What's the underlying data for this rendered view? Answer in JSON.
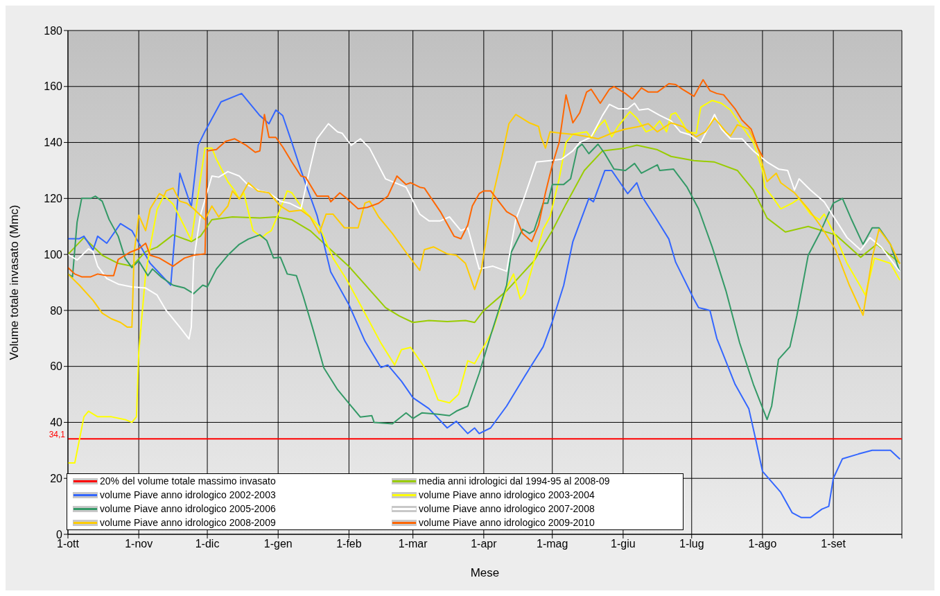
{
  "chart_data": {
    "type": "line",
    "xlabel": "Mese",
    "ylabel": "Volume totale invasato (Mmc)",
    "xlim": [
      "2009-10-01",
      "2010-10-01"
    ],
    "ylim": [
      0,
      180
    ],
    "xticks": [
      {
        "value": "2009-10-01",
        "label": "1-ott"
      },
      {
        "value": "2009-11-01",
        "label": "1-nov"
      },
      {
        "value": "2009-12-01",
        "label": "1-dic"
      },
      {
        "value": "2010-01-01",
        "label": "1-gen"
      },
      {
        "value": "2010-02-01",
        "label": "1-feb"
      },
      {
        "value": "2010-03-01",
        "label": "1-mar"
      },
      {
        "value": "2010-04-01",
        "label": "1-apr"
      },
      {
        "value": "2010-05-01",
        "label": "1-mag"
      },
      {
        "value": "2010-06-01",
        "label": "1-giu"
      },
      {
        "value": "2010-07-01",
        "label": "1-lug"
      },
      {
        "value": "2010-08-01",
        "label": "1-ago"
      },
      {
        "value": "2010-09-01",
        "label": "1-set"
      },
      {
        "value": "2010-10-01",
        "label": null
      }
    ],
    "yticks": [
      0,
      20,
      40,
      60,
      80,
      100,
      120,
      140,
      160,
      180
    ],
    "grid": true,
    "legend": "bottom left",
    "marker": "none",
    "line_style": "solid",
    "annotations": [
      {
        "text": "34,1",
        "x": "2009-10-01",
        "y": 34.1
      }
    ],
    "series": [
      {
        "name": "20% del volume totale massimo invasato",
        "color": "#ff0000",
        "x": [
          "2009-10-01",
          "2010-10-01"
        ],
        "values": [
          34.1,
          34.1
        ]
      },
      {
        "name": "media anni idrologici dal 1994-95 al 2008-09",
        "color": "#99cc00",
        "x": [
          "2009-10-01",
          "2009-10-08",
          "2009-10-16",
          "2009-10-23",
          "2009-10-29",
          "2009-11-04",
          "2009-11-09",
          "2009-11-16",
          "2009-11-24",
          "2009-11-28",
          "2009-12-03",
          "2009-12-12",
          "2009-12-24",
          "2009-12-31",
          "2010-01-07",
          "2010-01-15",
          "2010-01-24",
          "2010-02-01",
          "2010-02-11",
          "2010-02-17",
          "2010-02-23",
          "2010-03-01",
          "2010-03-08",
          "2010-03-16",
          "2010-03-24",
          "2010-03-28",
          "2010-04-01",
          "2010-04-11",
          "2010-04-23",
          "2010-05-01",
          "2010-05-07",
          "2010-05-15",
          "2010-05-23",
          "2010-06-02",
          "2010-06-07",
          "2010-06-16",
          "2010-06-22",
          "2010-07-02",
          "2010-07-11",
          "2010-07-21",
          "2010-07-28",
          "2010-08-03",
          "2010-08-11",
          "2010-08-21",
          "2010-09-02",
          "2010-09-13",
          "2010-09-20",
          "2010-09-30"
        ],
        "values": [
          100,
          106,
          99.7,
          96.8,
          95.8,
          101,
          102.6,
          107,
          104.6,
          106.5,
          112.4,
          113.4,
          113,
          113.4,
          112.4,
          108.5,
          101.7,
          95.7,
          86.5,
          81,
          78,
          75.7,
          76.4,
          76,
          76.4,
          75.7,
          80,
          87,
          97.7,
          108.5,
          118,
          130,
          137,
          138,
          139,
          137.4,
          135,
          133.5,
          133,
          130,
          123,
          113,
          108,
          110,
          107,
          99,
          103.6,
          97
        ]
      },
      {
        "name": "volume Piave anno idrologico 2002-2003",
        "color": "#3366ff",
        "x": [
          "2009-10-01",
          "2009-10-06",
          "2009-10-08",
          "2009-10-12",
          "2009-10-14",
          "2009-10-18",
          "2009-10-24",
          "2009-10-29",
          "2009-10-31",
          "2009-11-06",
          "2009-11-15",
          "2009-11-19",
          "2009-11-24",
          "2009-11-27",
          "2009-11-30",
          "2009-12-07",
          "2009-12-16",
          "2009-12-24",
          "2009-12-28",
          "2009-12-31",
          "2010-01-03",
          "2010-01-07",
          "2010-01-11",
          "2010-01-18",
          "2010-01-24",
          "2010-02-01",
          "2010-02-08",
          "2010-02-15",
          "2010-02-18",
          "2010-02-24",
          "2010-03-01",
          "2010-03-08",
          "2010-03-16",
          "2010-03-20",
          "2010-03-25",
          "2010-03-28",
          "2010-03-30",
          "2010-04-04",
          "2010-04-11",
          "2010-04-19",
          "2010-04-27",
          "2010-05-01",
          "2010-05-06",
          "2010-05-10",
          "2010-05-17",
          "2010-05-19",
          "2010-05-24",
          "2010-05-27",
          "2010-06-03",
          "2010-06-07",
          "2010-06-09",
          "2010-06-15",
          "2010-06-21",
          "2010-06-24",
          "2010-07-02",
          "2010-07-04",
          "2010-07-09",
          "2010-07-12",
          "2010-07-20",
          "2010-07-26",
          "2010-07-29",
          "2010-08-01",
          "2010-08-09",
          "2010-08-14",
          "2010-08-18",
          "2010-08-22",
          "2010-08-27",
          "2010-08-30",
          "2010-09-01",
          "2010-09-05",
          "2010-09-12",
          "2010-09-18",
          "2010-09-26",
          "2010-09-30"
        ],
        "values": [
          105.6,
          105.6,
          106.5,
          101.6,
          106.5,
          104,
          111,
          108.5,
          105.6,
          96.8,
          89,
          129,
          117,
          139,
          144,
          154.5,
          157.5,
          149.6,
          146.7,
          151.6,
          149.6,
          140,
          130,
          114,
          93.8,
          82,
          69,
          59.6,
          60.5,
          54.7,
          48.8,
          44.9,
          38,
          40.4,
          36,
          38,
          36,
          38,
          45.8,
          56.6,
          67,
          76,
          89,
          104.6,
          120,
          118.8,
          130,
          130,
          121.7,
          125.6,
          121,
          113.4,
          105.5,
          97.2,
          84,
          81,
          80,
          70,
          53.6,
          44.9,
          34,
          22.5,
          15,
          7.7,
          6,
          6,
          9,
          10,
          20,
          27,
          28.7,
          30,
          30,
          27
        ]
      },
      {
        "name": "volume Piave anno idrologico 2003-2004",
        "color": "#ffff00",
        "x": [
          "2009-10-01",
          "2009-10-04",
          "2009-10-08",
          "2009-10-10",
          "2009-10-14",
          "2009-10-20",
          "2009-10-26",
          "2009-10-29",
          "2009-10-31",
          "2009-11-01",
          "2009-11-04",
          "2009-11-06",
          "2009-11-09",
          "2009-11-12",
          "2009-11-16",
          "2009-11-21",
          "2009-11-24",
          "2009-11-30",
          "2009-12-03",
          "2009-12-05",
          "2009-12-10",
          "2009-12-13",
          "2009-12-15",
          "2009-12-17",
          "2009-12-21",
          "2009-12-25",
          "2009-12-27",
          "2009-12-29",
          "2010-01-02",
          "2010-01-05",
          "2010-01-07",
          "2010-01-12",
          "2010-01-19",
          "2010-01-25",
          "2010-01-31",
          "2010-02-08",
          "2010-02-15",
          "2010-02-21",
          "2010-02-24",
          "2010-02-28",
          "2010-03-07",
          "2010-03-12",
          "2010-03-17",
          "2010-03-21",
          "2010-03-25",
          "2010-03-28",
          "2010-04-01",
          "2010-04-05",
          "2010-04-11",
          "2010-04-14",
          "2010-04-17",
          "2010-04-19",
          "2010-04-23",
          "2010-04-27",
          "2010-04-30",
          "2010-05-04",
          "2010-05-07",
          "2010-05-10",
          "2010-05-16",
          "2010-05-18",
          "2010-05-21",
          "2010-05-24",
          "2010-05-27",
          "2010-05-30",
          "2010-06-04",
          "2010-06-07",
          "2010-06-11",
          "2010-06-14",
          "2010-06-17",
          "2010-06-20",
          "2010-06-22",
          "2010-06-24",
          "2010-06-27",
          "2010-06-29",
          "2010-07-03",
          "2010-07-05",
          "2010-07-10",
          "2010-07-14",
          "2010-07-18",
          "2010-07-23",
          "2010-07-28",
          "2010-08-01",
          "2010-08-02",
          "2010-08-06",
          "2010-08-09",
          "2010-08-14",
          "2010-08-17",
          "2010-08-22",
          "2010-08-26",
          "2010-08-28",
          "2010-09-02",
          "2010-09-07",
          "2010-09-13",
          "2010-09-15",
          "2010-09-19",
          "2010-09-26",
          "2010-09-30"
        ],
        "values": [
          25.5,
          25.5,
          42,
          44,
          42,
          42,
          41,
          40,
          42,
          65,
          93,
          102.7,
          116,
          121,
          118,
          110,
          105,
          138,
          138,
          134,
          126,
          122.7,
          119.8,
          122,
          108.5,
          106,
          107.5,
          108.5,
          116.3,
          122.7,
          122,
          116,
          110,
          98.7,
          91,
          79,
          68.3,
          60.5,
          66,
          66.8,
          58.6,
          48,
          47,
          50,
          62,
          61,
          67,
          73,
          88,
          93,
          84,
          86,
          97.7,
          109,
          113.4,
          127,
          140,
          143,
          143.8,
          141.6,
          145.6,
          148,
          142,
          146,
          151,
          148.7,
          143.8,
          144.8,
          147.7,
          143.8,
          150,
          150.6,
          147,
          143.8,
          143.3,
          152.6,
          155,
          154,
          151.6,
          145.7,
          140,
          130,
          124,
          119.8,
          116.3,
          118.3,
          120,
          114.4,
          112.4,
          114.4,
          106.5,
          96.8,
          88.4,
          85.5,
          98.7,
          96.8,
          91
        ]
      },
      {
        "name": "volume Piave anno idrologico 2005-2006",
        "color": "#339966",
        "x": [
          "2009-10-01",
          "2009-10-03",
          "2009-10-05",
          "2009-10-07",
          "2009-10-11",
          "2009-10-13",
          "2009-10-16",
          "2009-10-19",
          "2009-10-23",
          "2009-10-26",
          "2009-10-29",
          "2009-11-01",
          "2009-11-05",
          "2009-11-07",
          "2009-11-11",
          "2009-11-16",
          "2009-11-21",
          "2009-11-25",
          "2009-11-29",
          "2009-12-01",
          "2009-12-05",
          "2009-12-10",
          "2009-12-15",
          "2009-12-19",
          "2009-12-24",
          "2009-12-27",
          "2009-12-30",
          "2010-01-02",
          "2010-01-05",
          "2010-01-09",
          "2010-01-12",
          "2010-01-16",
          "2010-01-21",
          "2010-01-27",
          "2010-02-02",
          "2010-02-06",
          "2010-02-11",
          "2010-02-12",
          "2010-02-20",
          "2010-02-26",
          "2010-03-01",
          "2010-03-05",
          "2010-03-12",
          "2010-03-17",
          "2010-03-20",
          "2010-03-25",
          "2010-03-30",
          "2010-04-04",
          "2010-04-11",
          "2010-04-13",
          "2010-04-18",
          "2010-04-21",
          "2010-04-23",
          "2010-04-27",
          "2010-04-29",
          "2010-05-01",
          "2010-05-06",
          "2010-05-09",
          "2010-05-12",
          "2010-05-14",
          "2010-05-17",
          "2010-05-21",
          "2010-05-24",
          "2010-05-28",
          "2010-06-02",
          "2010-06-06",
          "2010-06-09",
          "2010-06-16",
          "2010-06-17",
          "2010-06-23",
          "2010-06-29",
          "2010-07-04",
          "2010-07-10",
          "2010-07-16",
          "2010-07-22",
          "2010-07-28",
          "2010-08-03",
          "2010-08-05",
          "2010-08-08",
          "2010-08-13",
          "2010-08-16",
          "2010-08-21",
          "2010-08-26",
          "2010-09-01",
          "2010-09-05",
          "2010-09-09",
          "2010-09-14",
          "2010-09-18",
          "2010-09-21",
          "2010-09-26",
          "2010-09-30"
        ],
        "values": [
          93,
          92,
          111.5,
          120,
          120,
          120.8,
          119,
          112.5,
          106.5,
          98.7,
          95.3,
          97.7,
          92.4,
          94.8,
          91.8,
          89,
          88,
          86,
          89,
          88.4,
          94.8,
          99.7,
          103.6,
          105.5,
          107,
          105,
          98.7,
          99,
          93,
          92.4,
          85,
          74,
          59.5,
          51.7,
          45.8,
          41.9,
          42.4,
          40,
          39.5,
          43.4,
          41.4,
          43.4,
          42.9,
          42.4,
          44,
          45.8,
          57.5,
          71,
          89,
          100.7,
          109,
          107.5,
          108.5,
          118.3,
          118.3,
          125,
          125,
          127,
          138,
          139.4,
          136,
          139.4,
          136,
          130.5,
          130,
          132.5,
          129,
          132,
          130,
          130.5,
          124,
          116.3,
          102.6,
          87,
          68.4,
          53.6,
          41,
          45.8,
          62.5,
          67,
          78,
          99.7,
          107.5,
          118.3,
          120,
          112.4,
          103.6,
          109.5,
          109.5,
          103.6,
          94
        ]
      },
      {
        "name": "volume Piave anno idrologico 2007-2008",
        "color": "#ffffff",
        "x": [
          "2009-10-01",
          "2009-10-05",
          "2009-10-10",
          "2009-10-12",
          "2009-10-14",
          "2009-10-18",
          "2009-10-23",
          "2009-10-29",
          "2009-11-04",
          "2009-11-09",
          "2009-11-13",
          "2009-11-19",
          "2009-11-23",
          "2009-11-24",
          "2009-11-25",
          "2009-11-28",
          "2009-12-03",
          "2009-12-06",
          "2009-12-10",
          "2009-12-15",
          "2009-12-19",
          "2009-12-24",
          "2009-12-28",
          "2010-01-02",
          "2010-01-06",
          "2010-01-11",
          "2010-01-15",
          "2010-01-18",
          "2010-01-23",
          "2010-01-27",
          "2010-01-29",
          "2010-02-02",
          "2010-02-06",
          "2010-02-10",
          "2010-02-17",
          "2010-02-26",
          "2010-03-04",
          "2010-03-08",
          "2010-03-13",
          "2010-03-17",
          "2010-03-22",
          "2010-03-25",
          "2010-03-30",
          "2010-04-05",
          "2010-04-11",
          "2010-04-15",
          "2010-04-19",
          "2010-04-24",
          "2010-04-30",
          "2010-05-05",
          "2010-05-10",
          "2010-05-13",
          "2010-05-18",
          "2010-05-23",
          "2010-05-26",
          "2010-05-30",
          "2010-06-03",
          "2010-06-06",
          "2010-06-08",
          "2010-06-12",
          "2010-06-17",
          "2010-06-22",
          "2010-06-26",
          "2010-06-30",
          "2010-07-05",
          "2010-07-08",
          "2010-07-11",
          "2010-07-14",
          "2010-07-18",
          "2010-07-23",
          "2010-07-28",
          "2010-08-03",
          "2010-08-08",
          "2010-08-12",
          "2010-08-15",
          "2010-08-17",
          "2010-08-22",
          "2010-08-28",
          "2010-09-02",
          "2010-09-07",
          "2010-09-13",
          "2010-09-17",
          "2010-09-22",
          "2010-09-30"
        ],
        "values": [
          100,
          98,
          102,
          101,
          95.8,
          91.4,
          89.4,
          88.4,
          88,
          85.5,
          80,
          74,
          69.8,
          74,
          97.7,
          114,
          128,
          127.6,
          129.6,
          128,
          124.7,
          122.7,
          122,
          119,
          118.3,
          116.3,
          131,
          141.3,
          146.7,
          143.8,
          143.3,
          139,
          141.3,
          138,
          127,
          124,
          114.4,
          112,
          112,
          113.4,
          108.5,
          109.5,
          94.8,
          95.8,
          94,
          112.4,
          121,
          133,
          133.5,
          134,
          137,
          140,
          142,
          149.7,
          153.6,
          152,
          152,
          154,
          151.6,
          152,
          149.7,
          147.7,
          143.8,
          142.8,
          140,
          144.8,
          150,
          144.8,
          141.3,
          141.3,
          137,
          133,
          130.5,
          130,
          123,
          127,
          123,
          118.8,
          112.4,
          106,
          101.6,
          106,
          102.6,
          94
        ]
      },
      {
        "name": "volume Piave anno idrologico 2008-2009",
        "color": "#ffcc00",
        "x": [
          "2009-10-01",
          "2009-10-06",
          "2009-10-12",
          "2009-10-16",
          "2009-10-20",
          "2009-10-24",
          "2009-10-27",
          "2009-10-29",
          "2009-10-30",
          "2009-11-01",
          "2009-11-04",
          "2009-11-06",
          "2009-11-10",
          "2009-11-12",
          "2009-11-13",
          "2009-11-16",
          "2009-11-19",
          "2009-11-22",
          "2009-11-25",
          "2009-11-30",
          "2009-12-03",
          "2009-12-06",
          "2009-12-10",
          "2009-12-12",
          "2009-12-15",
          "2009-12-19",
          "2009-12-23",
          "2009-12-28",
          "2010-01-02",
          "2010-01-06",
          "2010-01-11",
          "2010-01-15",
          "2010-01-19",
          "2010-01-22",
          "2010-01-25",
          "2010-01-30",
          "2010-02-05",
          "2010-02-08",
          "2010-02-10",
          "2010-02-14",
          "2010-02-20",
          "2010-02-26",
          "2010-03-04",
          "2010-03-06",
          "2010-03-10",
          "2010-03-16",
          "2010-03-20",
          "2010-03-24",
          "2010-03-28",
          "2010-03-31",
          "2010-04-05",
          "2010-04-09",
          "2010-04-12",
          "2010-04-15",
          "2010-04-21",
          "2010-04-25",
          "2010-04-26",
          "2010-04-28",
          "2010-04-30",
          "2010-05-05",
          "2010-05-11",
          "2010-05-17",
          "2010-05-21",
          "2010-05-27",
          "2010-06-02",
          "2010-06-08",
          "2010-06-12",
          "2010-06-16",
          "2010-06-22",
          "2010-06-27",
          "2010-07-03",
          "2010-07-07",
          "2010-07-11",
          "2010-07-16",
          "2010-07-18",
          "2010-07-21",
          "2010-07-26",
          "2010-07-30",
          "2010-08-03",
          "2010-08-07",
          "2010-08-09",
          "2010-08-15",
          "2010-08-21",
          "2010-08-27",
          "2010-09-02",
          "2010-09-08",
          "2010-09-14",
          "2010-09-18",
          "2010-09-21",
          "2010-09-26",
          "2010-09-30"
        ],
        "values": [
          93,
          89,
          83.6,
          79,
          77,
          75.7,
          74,
          74,
          100.7,
          114,
          108.5,
          116.3,
          121.7,
          120.8,
          122.7,
          123.7,
          119,
          118.3,
          116.3,
          112.4,
          117.3,
          113.4,
          117.3,
          122.7,
          119.8,
          125.6,
          122.7,
          122,
          117.3,
          115.3,
          115.8,
          113.4,
          107.5,
          114.4,
          114.4,
          109.5,
          109.5,
          118.3,
          119,
          113.4,
          107.5,
          100.7,
          94.3,
          101.7,
          102.7,
          100.2,
          99.7,
          96.8,
          87.5,
          94.8,
          121,
          135,
          146.7,
          150,
          147,
          145.7,
          142,
          138,
          143.8,
          143.3,
          142.8,
          142,
          141.3,
          143.3,
          144.8,
          145.7,
          146.7,
          143.8,
          147,
          145.7,
          142,
          143.8,
          148.7,
          143.8,
          142.3,
          146.3,
          144.8,
          138,
          126,
          129,
          125.6,
          122,
          116.3,
          109.5,
          101.7,
          89,
          78.3,
          98.7,
          109,
          103.6,
          96.8
        ]
      },
      {
        "name": "volume Piave anno idrologico 2009-2010",
        "color": "#ff6600",
        "x": [
          "2009-10-01",
          "2009-10-04",
          "2009-10-07",
          "2009-10-11",
          "2009-10-14",
          "2009-10-18",
          "2009-10-21",
          "2009-10-23",
          "2009-10-28",
          "2009-11-01",
          "2009-11-04",
          "2009-11-06",
          "2009-11-10",
          "2009-11-16",
          "2009-11-21",
          "2009-11-25",
          "2009-11-30",
          "2009-12-01",
          "2009-12-05",
          "2009-12-09",
          "2009-12-13",
          "2009-12-18",
          "2009-12-22",
          "2009-12-24",
          "2009-12-26",
          "2009-12-28",
          "2009-12-31",
          "2010-01-03",
          "2010-01-07",
          "2010-01-11",
          "2010-01-13",
          "2010-01-18",
          "2010-01-23",
          "2010-01-24",
          "2010-01-28",
          "2010-01-31",
          "2010-02-05",
          "2010-02-09",
          "2010-02-14",
          "2010-02-18",
          "2010-02-22",
          "2010-02-26",
          "2010-02-28",
          "2010-03-04",
          "2010-03-06",
          "2010-03-13",
          "2010-03-19",
          "2010-03-22",
          "2010-03-25",
          "2010-03-27",
          "2010-03-30",
          "2010-04-01",
          "2010-04-04",
          "2010-04-11",
          "2010-04-15",
          "2010-04-18",
          "2010-04-22",
          "2010-04-25",
          "2010-04-28",
          "2010-05-01",
          "2010-05-04",
          "2010-05-07",
          "2010-05-10",
          "2010-05-13",
          "2010-05-16",
          "2010-05-18",
          "2010-05-22",
          "2010-05-26",
          "2010-05-28",
          "2010-06-02",
          "2010-06-05",
          "2010-06-09",
          "2010-06-12",
          "2010-06-16",
          "2010-06-21",
          "2010-06-24",
          "2010-06-27",
          "2010-07-02",
          "2010-07-06",
          "2010-07-09",
          "2010-07-12",
          "2010-07-15",
          "2010-07-20",
          "2010-07-23",
          "2010-07-27",
          "2010-07-30",
          "2010-08-01"
        ],
        "values": [
          95.3,
          93,
          92,
          92,
          93,
          92.4,
          92.4,
          98.2,
          100.7,
          102,
          104,
          99.7,
          98.7,
          95.8,
          98.7,
          99.7,
          100.2,
          137,
          137.5,
          140.4,
          141.3,
          139,
          136.5,
          137,
          150,
          141.8,
          141.8,
          138.4,
          133,
          128,
          127.6,
          120.8,
          120.8,
          118.8,
          122,
          120,
          116.3,
          116.8,
          118.3,
          120.8,
          128,
          125,
          125.6,
          124,
          123.7,
          115.3,
          106.5,
          105.6,
          110.5,
          117.3,
          121.7,
          122.7,
          122.7,
          115.3,
          113.4,
          107.5,
          104.6,
          110.5,
          122,
          132,
          140,
          157,
          147,
          150.6,
          158,
          159,
          154,
          159,
          160,
          157.5,
          155.5,
          159.5,
          158,
          158,
          161,
          160.7,
          159,
          156.5,
          162.4,
          158.5,
          157.5,
          157,
          152,
          148,
          144.8,
          138,
          135
        ]
      }
    ]
  }
}
